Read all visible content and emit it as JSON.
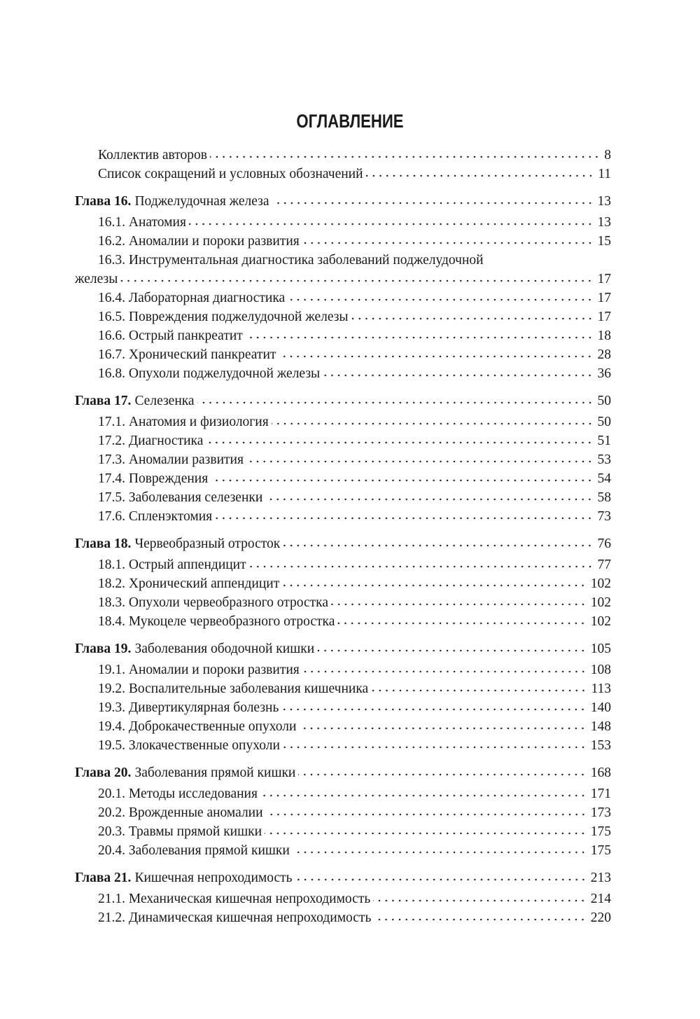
{
  "heading": "ОГЛАВЛЕНИЕ",
  "front": [
    {
      "title": "Коллектив авторов",
      "page": "8"
    },
    {
      "title": "Список сокращений и условных обозначений",
      "page": "11"
    }
  ],
  "chapters": [
    {
      "label": "Глава 16.",
      "title": "Поджелудочная железа",
      "page": "13",
      "entries": [
        {
          "title": "16.1. Анатомия",
          "page": "13"
        },
        {
          "title": "16.2. Аномалии и пороки развития",
          "page": "15"
        },
        {
          "title": "16.3. Инструментальная диагностика заболеваний поджелудочной",
          "title_cont": "железы",
          "page": "17"
        },
        {
          "title": "16.4. Лабораторная диагностика",
          "page": "17"
        },
        {
          "title": "16.5. Повреждения поджелудочной железы",
          "page": "17"
        },
        {
          "title": "16.6. Острый панкреатит",
          "page": "18"
        },
        {
          "title": "16.7. Хронический панкреатит",
          "page": "28"
        },
        {
          "title": "16.8. Опухоли поджелудочной железы",
          "page": "36"
        }
      ]
    },
    {
      "label": "Глава 17.",
      "title": "Селезенка",
      "page": "50",
      "entries": [
        {
          "title": "17.1. Анатомия и физиология",
          "page": "50"
        },
        {
          "title": "17.2. Диагностика",
          "page": "51"
        },
        {
          "title": "17.3. Аномалии развития",
          "page": "53"
        },
        {
          "title": "17.4. Повреждения",
          "page": "54"
        },
        {
          "title": "17.5. Заболевания селезенки",
          "page": "58"
        },
        {
          "title": "17.6. Спленэктомия",
          "page": "73"
        }
      ]
    },
    {
      "label": "Глава 18.",
      "title": "Червеобразный отросток",
      "page": "76",
      "entries": [
        {
          "title": "18.1. Острый аппендицит",
          "page": "77"
        },
        {
          "title": "18.2. Хронический аппендицит",
          "page": "102"
        },
        {
          "title": "18.3. Опухоли червеобразного отростка",
          "page": "102"
        },
        {
          "title": "18.4. Мукоцеле червеобразного отростка",
          "page": "102"
        }
      ]
    },
    {
      "label": "Глава 19.",
      "title": "Заболевания ободочной кишки",
      "page": "105",
      "entries": [
        {
          "title": "19.1. Аномалии и пороки развития",
          "page": "108"
        },
        {
          "title": "19.2. Воспалительные заболевания кишечника",
          "page": "113"
        },
        {
          "title": "19.3. Дивертикулярная болезнь",
          "page": "140"
        },
        {
          "title": "19.4. Доброкачественные опухоли",
          "page": "148"
        },
        {
          "title": "19.5. Злокачественные опухоли",
          "page": "153"
        }
      ]
    },
    {
      "label": "Глава 20.",
      "title": "Заболевания прямой кишки",
      "page": "168",
      "entries": [
        {
          "title": "20.1. Методы исследования",
          "page": "171"
        },
        {
          "title": "20.2. Врожденные аномалии",
          "page": "173"
        },
        {
          "title": "20.3. Травмы прямой кишки",
          "page": "175"
        },
        {
          "title": "20.4. Заболевания прямой кишки",
          "page": "175"
        }
      ]
    },
    {
      "label": "Глава 21.",
      "title": "Кишечная непроходимость",
      "page": "213",
      "entries": [
        {
          "title": "21.1. Механическая кишечная непроходимость",
          "page": "214"
        },
        {
          "title": "21.2. Динамическая кишечная непроходимость",
          "page": "220"
        }
      ]
    }
  ]
}
